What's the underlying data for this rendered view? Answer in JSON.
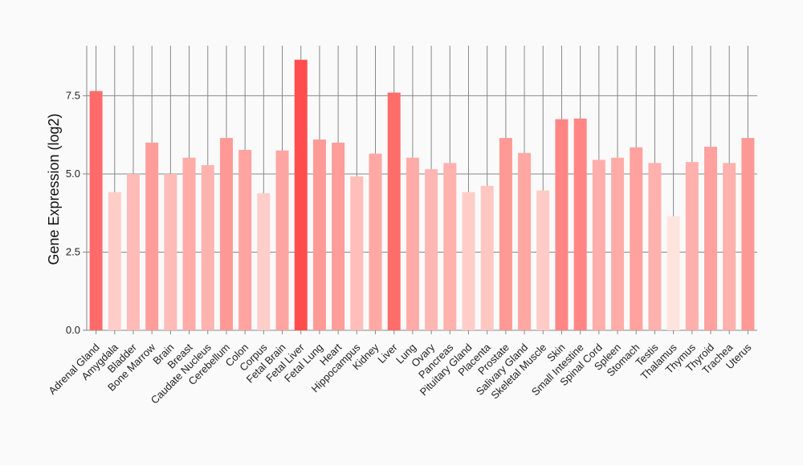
{
  "chart_data": {
    "type": "bar",
    "title": "",
    "xlabel": "",
    "ylabel": "Gene Expression (log2)",
    "ylim": [
      0,
      9.1
    ],
    "yticks": [
      "0.0",
      "2.5",
      "5.0",
      "7.5"
    ],
    "grid": true,
    "categories": [
      "Adrenal Gland",
      "Amygdala",
      "Bladder",
      "Bone Marrow",
      "Brain",
      "Breast",
      "Caudate Nucleus",
      "Cerebellum",
      "Colon",
      "Corpus",
      "Fetal Brain",
      "Fetal Liver",
      "Fetal Lung",
      "Heart",
      "Hippocampus",
      "Kidney",
      "Liver",
      "Lung",
      "Ovary",
      "Pancreas",
      "Pituitary Gland",
      "Placenta",
      "Prostate",
      "Salivary Gland",
      "Skeletal Muscle",
      "Skin",
      "Small Intestine",
      "Spinal Cord",
      "Spleen",
      "Stomach",
      "Testis",
      "Thalamus",
      "Thymus",
      "Thyroid",
      "Trachea",
      "Uterus"
    ],
    "values": [
      7.65,
      4.42,
      5.0,
      6.0,
      5.0,
      5.52,
      5.28,
      6.15,
      5.77,
      4.38,
      5.75,
      8.65,
      6.1,
      6.0,
      4.92,
      5.65,
      7.6,
      5.52,
      5.15,
      5.35,
      4.42,
      4.62,
      6.15,
      5.67,
      4.47,
      6.75,
      6.77,
      5.45,
      5.52,
      5.85,
      5.35,
      3.65,
      5.38,
      5.87,
      5.35,
      6.15
    ],
    "colors": {
      "high": "#ff4d4d",
      "low": "#ffe4de",
      "grid": "#888888",
      "background": "#fafafa"
    }
  }
}
